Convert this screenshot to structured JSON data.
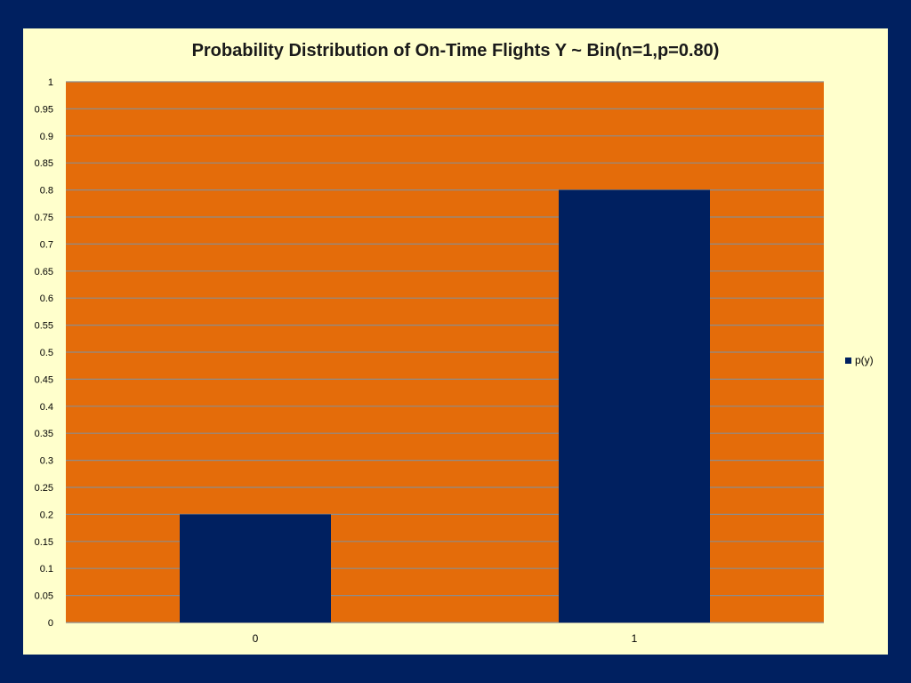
{
  "colors": {
    "page_background": "#002060",
    "chart_background": "#ffffcc",
    "plot_area": "#e46c0a",
    "gridline": "#8c8c8c",
    "bar": "#002060"
  },
  "chart_data": {
    "type": "bar",
    "title": "Probability Distribution of On-Time Flights Y ~ Bin(n=1,p=0.80)",
    "xlabel": "",
    "ylabel": "",
    "categories": [
      "0",
      "1"
    ],
    "series": [
      {
        "name": "p(y)",
        "values": [
          0.2,
          0.8
        ]
      }
    ],
    "ylim": [
      0,
      1
    ],
    "yticks": [
      "0",
      "0.05",
      "0.1",
      "0.15",
      "0.2",
      "0.25",
      "0.3",
      "0.35",
      "0.4",
      "0.45",
      "0.5",
      "0.55",
      "0.6",
      "0.65",
      "0.7",
      "0.75",
      "0.8",
      "0.85",
      "0.9",
      "0.95",
      "1"
    ],
    "grid": true,
    "legend_position": "right"
  }
}
